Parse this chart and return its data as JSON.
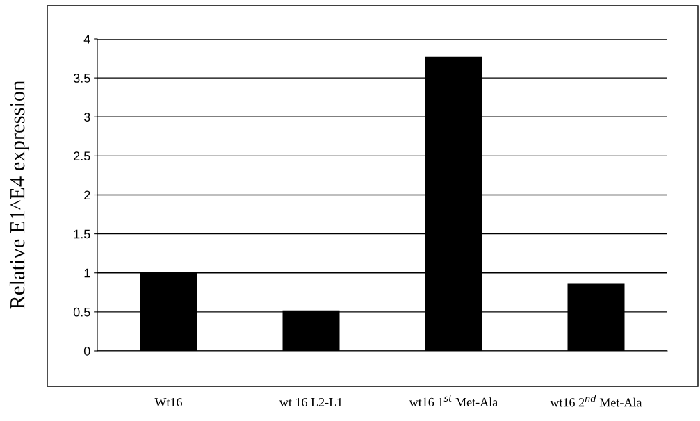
{
  "chart_data": {
    "type": "bar",
    "ylabel": "Relative E1^E4 expression",
    "categories": [
      "Wt16",
      "wt 16 L2-L1",
      "wt16 1$^{st}$ Met-Ala",
      "wt16 2$^{nd}$ Met-Ala"
    ],
    "values": [
      1.0,
      0.52,
      3.77,
      0.86
    ],
    "color": "#000000",
    "ylim": [
      0,
      4
    ],
    "yticks": [
      0,
      0.5,
      1,
      1.5,
      2,
      2.5,
      3,
      3.5,
      4
    ],
    "grid": "y",
    "legend": false
  }
}
